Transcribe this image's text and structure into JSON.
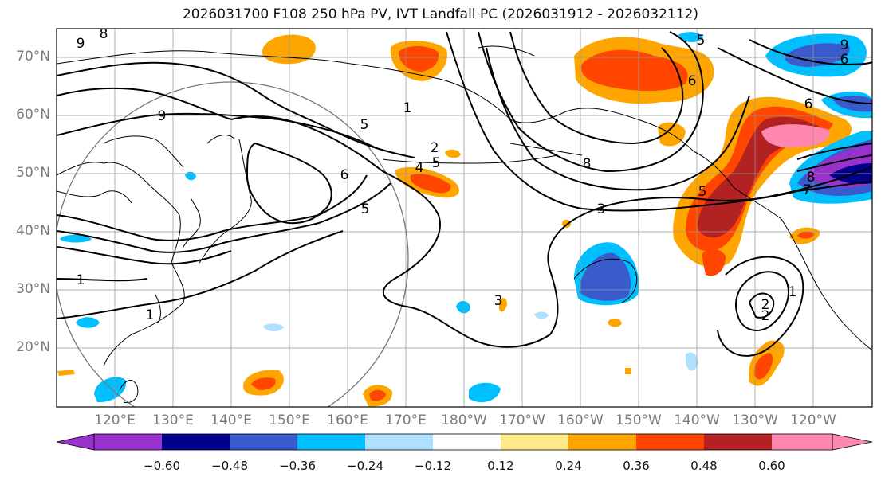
{
  "title": "2026031700 F108 250 hPa PV, IVT Landfall PC (2026031912 - 2026032112)",
  "lat_labels": [
    "70°N",
    "60°N",
    "50°N",
    "40°N",
    "30°N",
    "20°N"
  ],
  "lon_labels": [
    "120°E",
    "130°E",
    "140°E",
    "150°E",
    "160°E",
    "170°E",
    "180°W",
    "170°W",
    "160°W",
    "150°W",
    "140°W",
    "130°W",
    "120°W"
  ],
  "contour_labels": [
    "9",
    "8",
    "1",
    "9",
    "5",
    "2",
    "5",
    "4",
    "6",
    "5",
    "1",
    "1",
    "3",
    "3",
    "8",
    "5",
    "6",
    "6",
    "5",
    "6",
    "9",
    "8",
    "7",
    "2",
    "1",
    "2"
  ],
  "colorbar": {
    "ticks": [
      "−0.60",
      "−0.48",
      "−0.36",
      "−0.24",
      "−0.12",
      "0.12",
      "0.24",
      "0.36",
      "0.48",
      "0.60"
    ],
    "colors": [
      "#9932cc",
      "#00008b",
      "#3a5bcc",
      "#00bfff",
      "#b0e0ff",
      "#ffffff",
      "#ffe98a",
      "#ffa500",
      "#ff4500",
      "#b22222",
      "#ff88b0"
    ]
  }
}
